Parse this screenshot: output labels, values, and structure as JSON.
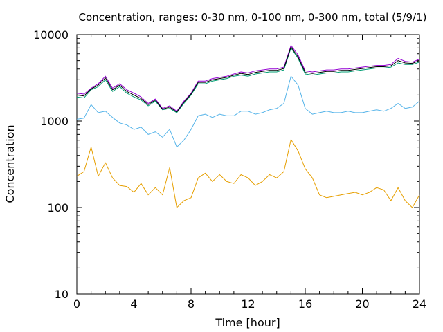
{
  "chart_data": {
    "type": "line",
    "title": "Concentration, ranges: 0-30 nm, 0-100 nm, 0-300 nm, total (5/9/1)",
    "xlabel": "Time [hour]",
    "ylabel": "Concentration",
    "xlim": [
      0,
      24
    ],
    "ylim": [
      10,
      10000
    ],
    "yscale": "log",
    "grid": false,
    "legend": "none",
    "x_ticks": [
      "0",
      "4",
      "8",
      "12",
      "16",
      "20",
      "24"
    ],
    "y_ticks": [
      "10",
      "100",
      "1000",
      "10000"
    ],
    "x_tick_values": [
      0,
      4,
      8,
      12,
      16,
      20,
      24
    ],
    "y_tick_values": [
      10,
      100,
      1000,
      10000
    ],
    "x": [
      0,
      0.5,
      1,
      1.5,
      2,
      2.5,
      3,
      3.5,
      4,
      4.5,
      5,
      5.5,
      6,
      6.5,
      7,
      7.5,
      8,
      8.5,
      9,
      9.5,
      10,
      10.5,
      11,
      11.5,
      12,
      12.5,
      13,
      13.5,
      14,
      14.5,
      15,
      15.5,
      16,
      16.5,
      17,
      17.5,
      18,
      18.5,
      19,
      19.5,
      20,
      20.5,
      21,
      21.5,
      22,
      22.5,
      23,
      23.5,
      24
    ],
    "series": [
      {
        "color": "#e69f00",
        "values": [
          230,
          260,
          500,
          230,
          330,
          220,
          180,
          175,
          150,
          190,
          140,
          170,
          140,
          290,
          100,
          120,
          130,
          220,
          250,
          200,
          240,
          200,
          190,
          240,
          220,
          180,
          200,
          240,
          220,
          260,
          610,
          450,
          280,
          220,
          140,
          130,
          135,
          140,
          145,
          150,
          140,
          150,
          170,
          160,
          120,
          170,
          120,
          100,
          140
        ]
      },
      {
        "color": "#56b4e9",
        "values": [
          1050,
          1080,
          1550,
          1250,
          1300,
          1100,
          950,
          900,
          800,
          850,
          700,
          750,
          650,
          800,
          500,
          600,
          800,
          1150,
          1200,
          1100,
          1200,
          1150,
          1150,
          1300,
          1300,
          1200,
          1250,
          1350,
          1400,
          1600,
          3300,
          2600,
          1400,
          1200,
          1250,
          1300,
          1250,
          1250,
          1300,
          1250,
          1250,
          1300,
          1350,
          1300,
          1400,
          1600,
          1400,
          1450,
          1700
        ]
      },
      {
        "color": "#009e73",
        "values": [
          1900,
          1850,
          2300,
          2500,
          3000,
          2200,
          2500,
          2100,
          1900,
          1750,
          1500,
          1700,
          1350,
          1400,
          1250,
          1600,
          2000,
          2700,
          2700,
          2900,
          3000,
          3100,
          3300,
          3400,
          3300,
          3500,
          3600,
          3700,
          3700,
          3900,
          7000,
          5300,
          3500,
          3400,
          3500,
          3600,
          3600,
          3700,
          3700,
          3800,
          3900,
          4000,
          4100,
          4100,
          4200,
          4700,
          4500,
          4500,
          4800
        ]
      },
      {
        "color": "#9400d3",
        "values": [
          2100,
          2050,
          2400,
          2700,
          3300,
          2400,
          2700,
          2300,
          2100,
          1900,
          1600,
          1800,
          1400,
          1500,
          1300,
          1700,
          2100,
          2900,
          2900,
          3100,
          3200,
          3300,
          3500,
          3700,
          3600,
          3800,
          3900,
          4000,
          4000,
          4200,
          7500,
          5800,
          3800,
          3700,
          3800,
          3900,
          3900,
          4000,
          4000,
          4100,
          4200,
          4300,
          4400,
          4400,
          4500,
          5300,
          4900,
          4800,
          5200
        ]
      },
      {
        "color": "#000000",
        "values": [
          2000,
          1950,
          2350,
          2600,
          3150,
          2300,
          2600,
          2200,
          2000,
          1820,
          1550,
          1750,
          1370,
          1450,
          1270,
          1650,
          2050,
          2800,
          2800,
          3000,
          3100,
          3200,
          3400,
          3550,
          3450,
          3650,
          3750,
          3850,
          3850,
          4050,
          7200,
          5500,
          3650,
          3550,
          3650,
          3750,
          3750,
          3850,
          3850,
          3950,
          4050,
          4150,
          4250,
          4250,
          4350,
          5000,
          4700,
          4650,
          5000
        ]
      }
    ]
  }
}
